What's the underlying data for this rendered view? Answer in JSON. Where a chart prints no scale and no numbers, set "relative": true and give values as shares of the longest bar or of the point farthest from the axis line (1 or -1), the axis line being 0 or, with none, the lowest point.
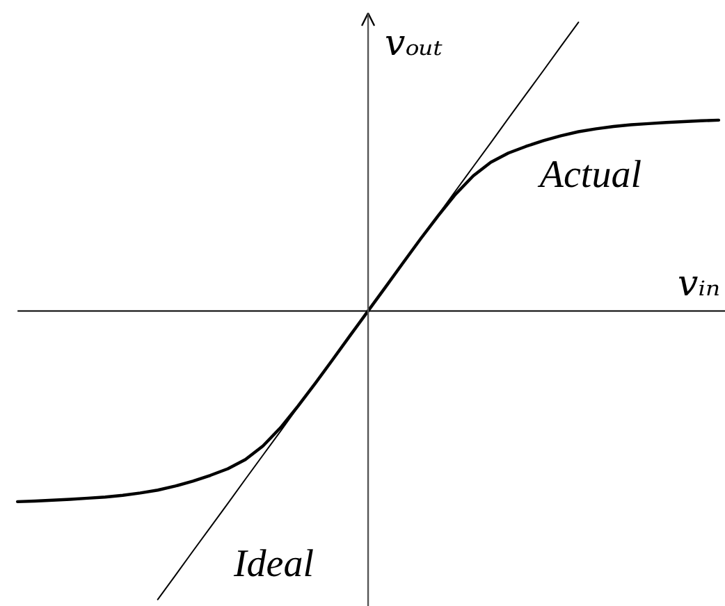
{
  "chart_data": {
    "type": "line",
    "relative": true,
    "xlabel": "vᵢₙ",
    "ylabel": "vₒᵤₜ",
    "categories": [
      null,
      null,
      null,
      null,
      null,
      null,
      null,
      null,
      null,
      null,
      null,
      null,
      null,
      null,
      null,
      null,
      null,
      null,
      null,
      null,
      null,
      null,
      null,
      null,
      null,
      null,
      null,
      null,
      null,
      null,
      null,
      null,
      null,
      null,
      null,
      null,
      null,
      null,
      null,
      null,
      null
    ],
    "series": [
      {
        "name": "Ideal",
        "color": "#000000",
        "values": [
          null,
          null,
          null,
          null,
          null,
          null,
          null,
          null,
          -1,
          -0.917,
          -0.833,
          -0.75,
          -0.667,
          -0.583,
          -0.5,
          -0.417,
          -0.333,
          -0.25,
          -0.167,
          -0.083,
          0,
          0.083,
          0.167,
          0.25,
          0.333,
          0.417,
          0.5,
          0.583,
          0.667,
          0.75,
          0.833,
          0.917,
          1,
          null,
          null,
          null,
          null,
          null,
          null,
          null,
          null
        ]
      },
      {
        "name": "Actual",
        "color": "#000000",
        "values": [
          -0.661,
          -0.659,
          -0.656,
          -0.653,
          -0.649,
          -0.645,
          -0.639,
          -0.631,
          -0.621,
          -0.607,
          -0.59,
          -0.57,
          -0.547,
          -0.515,
          -0.468,
          -0.405,
          -0.33,
          -0.25,
          -0.167,
          -0.083,
          0,
          0.083,
          0.167,
          0.25,
          0.33,
          0.405,
          0.468,
          0.515,
          0.547,
          0.57,
          0.59,
          0.607,
          0.621,
          0.631,
          0.639,
          0.645,
          0.649,
          0.653,
          0.656,
          0.659,
          0.661
        ]
      }
    ]
  }
}
